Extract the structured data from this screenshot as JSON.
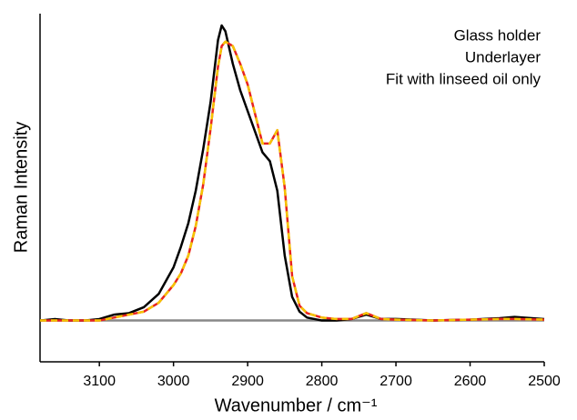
{
  "chart_data": {
    "type": "line",
    "xlabel": "Wavenumber / cm⁻¹",
    "ylabel": "Raman Intensity",
    "x": [
      3180,
      3160,
      3140,
      3120,
      3100,
      3080,
      3060,
      3040,
      3020,
      3000,
      2990,
      2980,
      2970,
      2960,
      2950,
      2940,
      2935,
      2930,
      2920,
      2910,
      2900,
      2890,
      2880,
      2870,
      2860,
      2850,
      2840,
      2830,
      2820,
      2800,
      2780,
      2760,
      2740,
      2720,
      2700,
      2650,
      2600,
      2560,
      2540,
      2500
    ],
    "series": [
      {
        "name": "Glass holder",
        "color": "#000000",
        "dashed": false,
        "values": [
          0,
          0.005,
          0,
          0,
          0.005,
          0.02,
          0.025,
          0.045,
          0.09,
          0.18,
          0.25,
          0.33,
          0.44,
          0.58,
          0.74,
          0.95,
          1.0,
          0.98,
          0.87,
          0.78,
          0.71,
          0.64,
          0.57,
          0.54,
          0.44,
          0.22,
          0.08,
          0.03,
          0.01,
          0,
          0,
          0.005,
          0.02,
          0.005,
          0.005,
          0,
          0.003,
          0.008,
          0.012,
          0.005
        ]
      },
      {
        "name": "Underlayer",
        "color": "#e8231f",
        "dashed": false,
        "values": [
          0,
          0,
          0,
          0,
          0,
          0.01,
          0.02,
          0.03,
          0.06,
          0.12,
          0.16,
          0.22,
          0.32,
          0.46,
          0.65,
          0.86,
          0.93,
          0.945,
          0.93,
          0.87,
          0.8,
          0.7,
          0.6,
          0.6,
          0.645,
          0.45,
          0.15,
          0.05,
          0.025,
          0.01,
          0.005,
          0.005,
          0.025,
          0.005,
          0.003,
          0,
          0.003,
          0.005,
          0.005,
          0.003
        ]
      },
      {
        "name": "Fit with linseed oil only",
        "color": "#f5c400",
        "dashed": true,
        "values": [
          0,
          0,
          0,
          0,
          0,
          0.01,
          0.02,
          0.03,
          0.06,
          0.12,
          0.16,
          0.22,
          0.32,
          0.46,
          0.65,
          0.86,
          0.93,
          0.945,
          0.93,
          0.87,
          0.8,
          0.7,
          0.6,
          0.6,
          0.645,
          0.45,
          0.15,
          0.05,
          0.025,
          0.01,
          0.005,
          0.005,
          0.025,
          0.005,
          0.003,
          0,
          0.003,
          0.005,
          0.005,
          0.003
        ]
      }
    ],
    "xlim": [
      3180,
      2500
    ],
    "xticks": [
      3100,
      3000,
      2900,
      2800,
      2700,
      2600,
      2500
    ],
    "ylim": [
      -0.14,
      1.04
    ],
    "hline": {
      "value": 0,
      "color": "#888888"
    },
    "legend": "top-right"
  }
}
